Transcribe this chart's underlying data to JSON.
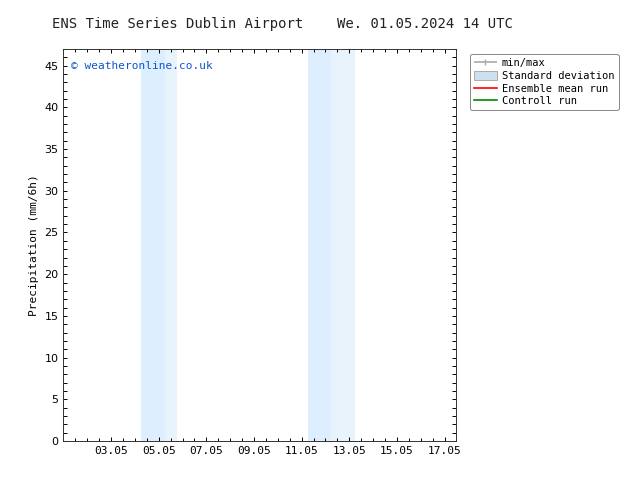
{
  "title_left": "ENS Time Series Dublin Airport",
  "title_right": "We. 01.05.2024 14 UTC",
  "ylabel": "Precipitation (mm/6h)",
  "ylim": [
    0,
    47
  ],
  "yticks": [
    0,
    5,
    10,
    15,
    20,
    25,
    30,
    35,
    40,
    45
  ],
  "xlim": [
    1.0,
    17.5
  ],
  "xtick_labels": [
    "03.05",
    "05.05",
    "07.05",
    "09.05",
    "11.05",
    "13.05",
    "15.05",
    "17.05"
  ],
  "xtick_positions": [
    3,
    5,
    7,
    9,
    11,
    13,
    15,
    17
  ],
  "shaded_regions": [
    {
      "xmin": 4.25,
      "xmax": 5.25,
      "color": "#ddeeff"
    },
    {
      "xmin": 5.25,
      "xmax": 5.75,
      "color": "#e8f3fb"
    },
    {
      "xmin": 11.25,
      "xmax": 12.25,
      "color": "#ddeeff"
    },
    {
      "xmin": 12.25,
      "xmax": 13.25,
      "color": "#e8f3fb"
    }
  ],
  "watermark": "© weatheronline.co.uk",
  "watermark_color": "#1155cc",
  "background_color": "#ffffff",
  "plot_bg_color": "#ffffff",
  "legend_minmax_color": "#aaaaaa",
  "legend_std_color": "#cce0f0",
  "legend_ens_color": "#ff0000",
  "legend_ctrl_color": "#008800",
  "font_family": "DejaVu Sans Mono",
  "title_fontsize": 10,
  "label_fontsize": 8,
  "tick_fontsize": 8,
  "watermark_fontsize": 8,
  "legend_fontsize": 7.5
}
